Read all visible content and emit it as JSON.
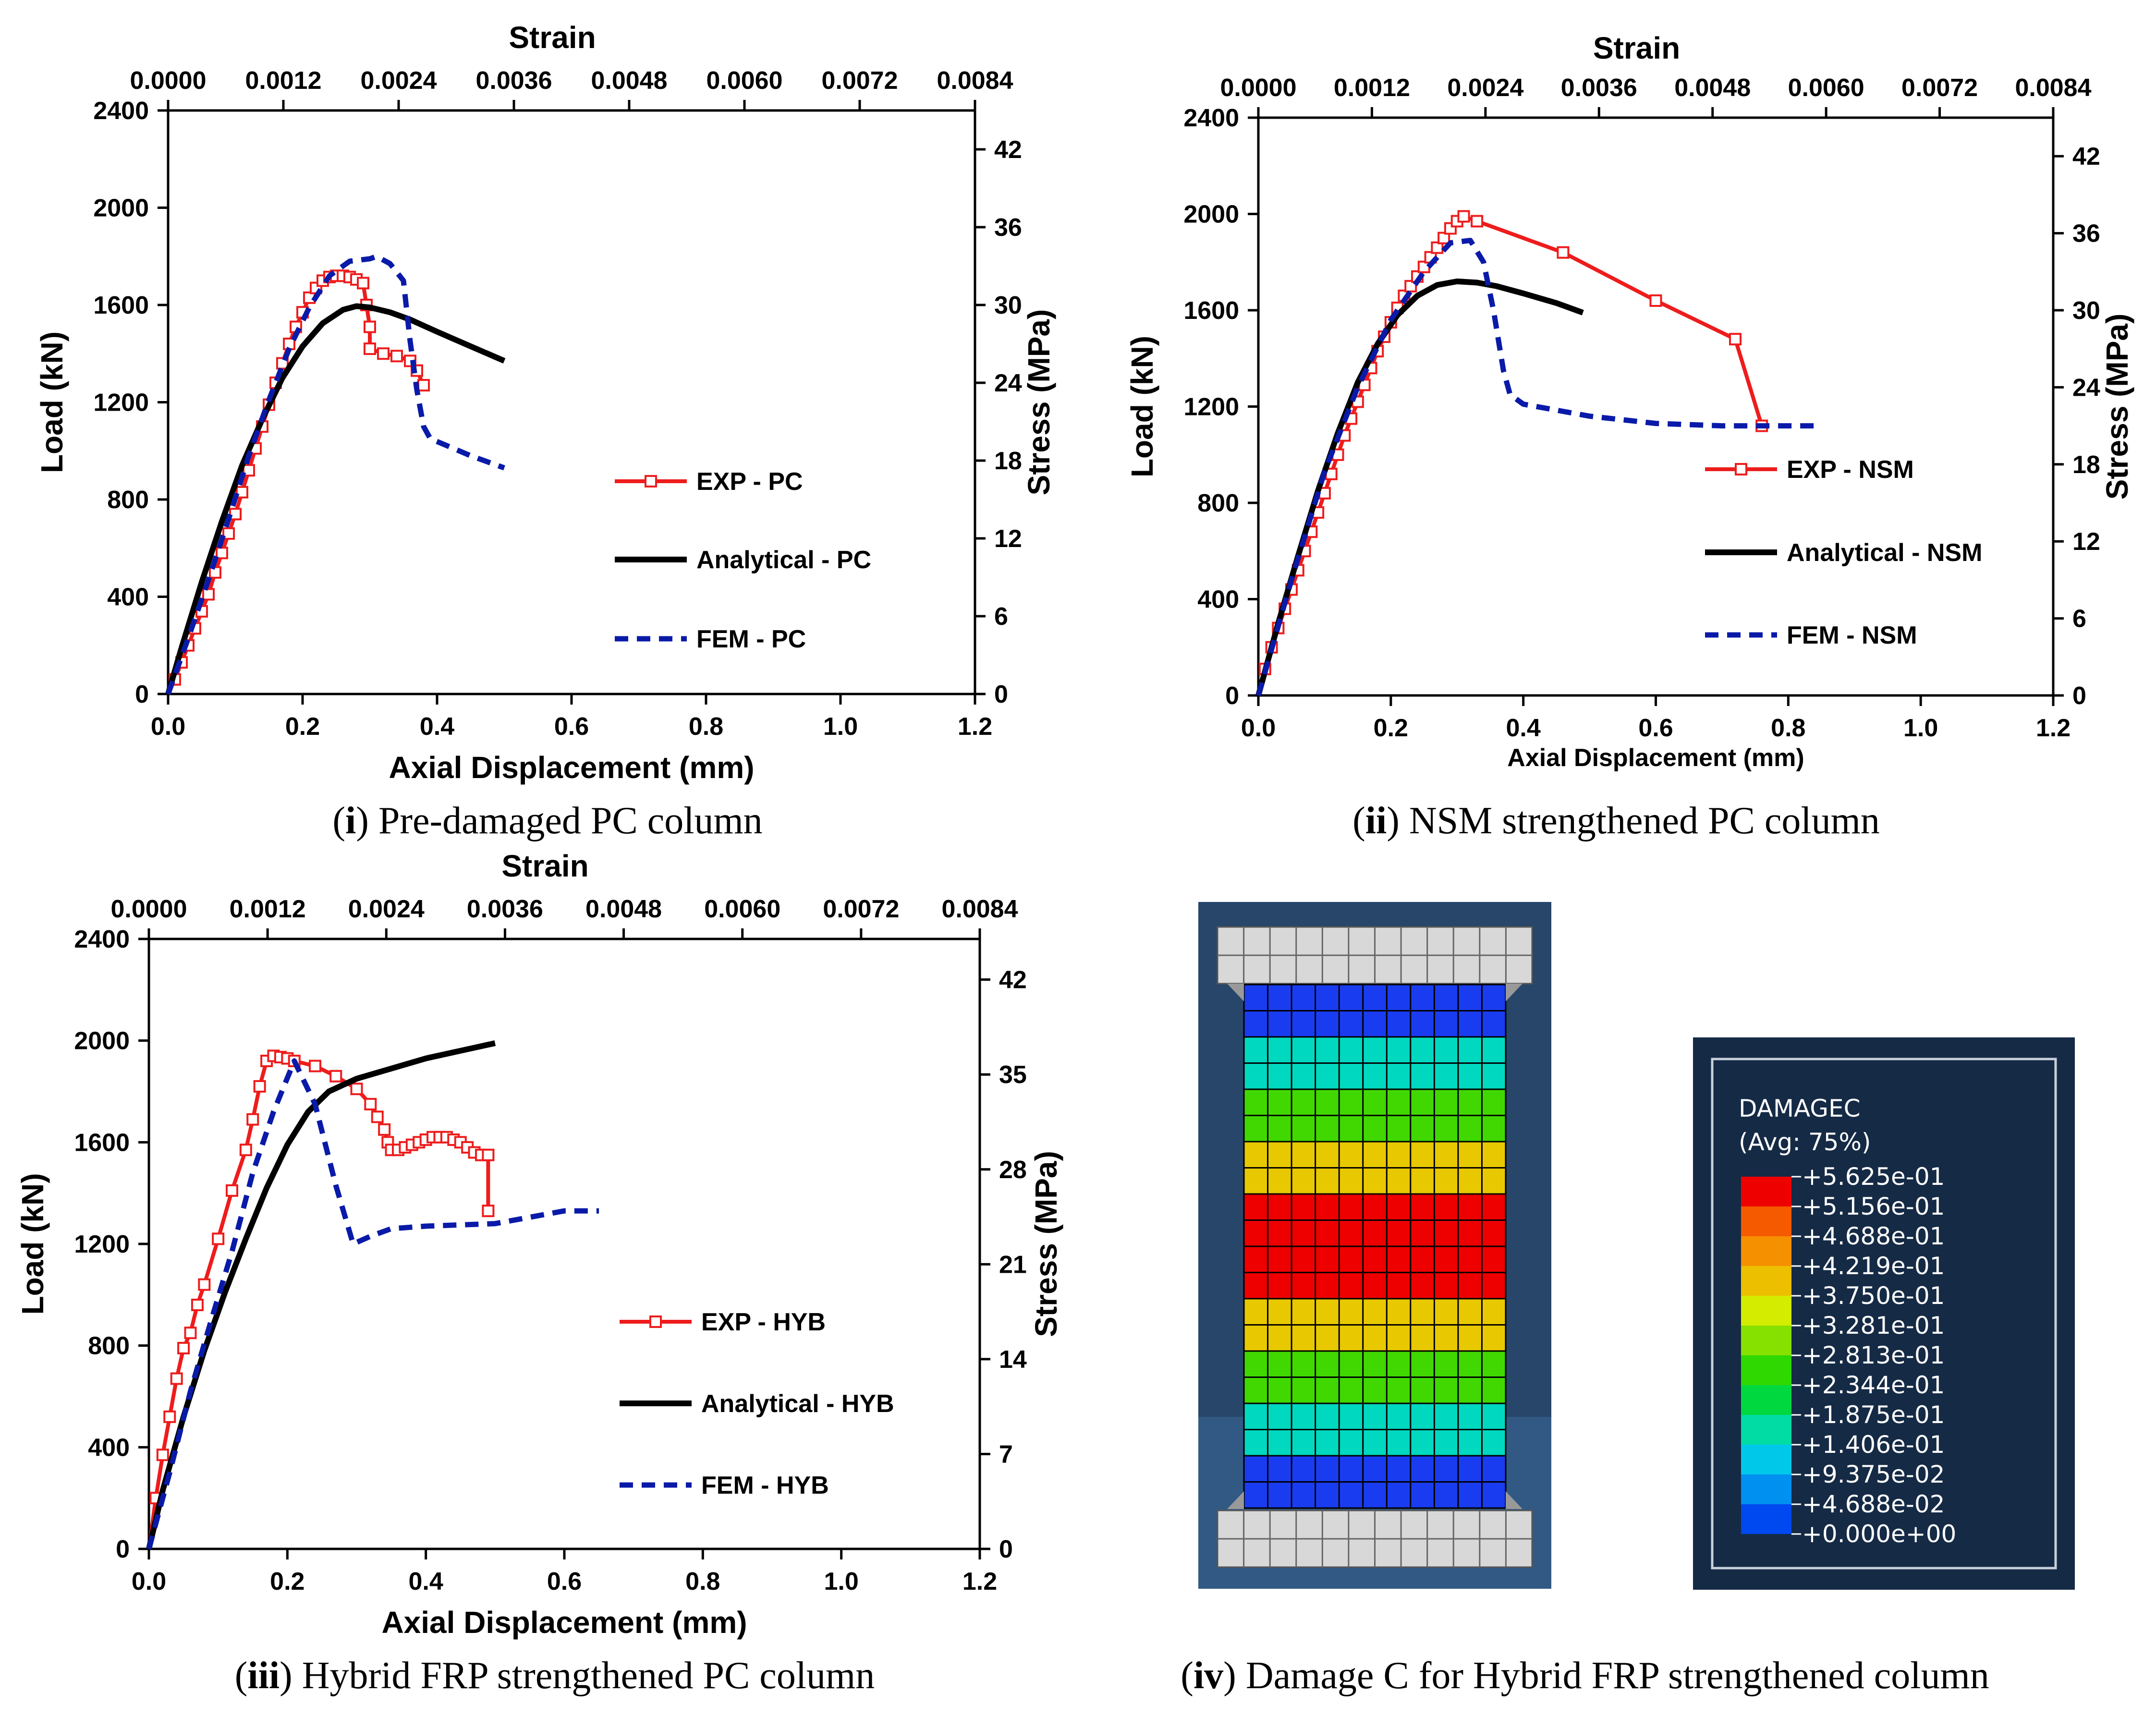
{
  "captions": [
    {
      "num": "i",
      "text": " Pre-damaged PC column"
    },
    {
      "num": "ii",
      "text": " NSM strengthened PC column"
    },
    {
      "num": "iii",
      "text": " Hybrid FRP strengthened PC column"
    },
    {
      "num": "iv",
      "text": " Damage C for Hybrid FRP strengthened column"
    }
  ],
  "chart_data": [
    {
      "type": "line",
      "title": "Pre-damaged PC column",
      "xlabel": "Axial Displacement (mm)",
      "ylabel": "Load (kN)",
      "x2label": "Strain",
      "y2label": "Stress (MPa)",
      "xlim": [
        0,
        1.2
      ],
      "ylim": [
        0,
        2400
      ],
      "x2lim": [
        0,
        0.0084
      ],
      "y2lim": [
        0,
        45
      ],
      "xticks": [
        "0.0",
        "0.2",
        "0.4",
        "0.6",
        "0.8",
        "1.0",
        "1.2"
      ],
      "yticks": [
        "0",
        "400",
        "800",
        "1200",
        "1600",
        "2000",
        "2400"
      ],
      "x2ticks": [
        "0.0000",
        "0.0012",
        "0.0024",
        "0.0036",
        "0.0048",
        "0.0060",
        "0.0072",
        "0.0084"
      ],
      "y2ticks": [
        "0",
        "6",
        "12",
        "18",
        "24",
        "30",
        "36",
        "42"
      ],
      "series": [
        {
          "name": "EXP - PC",
          "color": "#ee1c1c",
          "style": "marker",
          "x": [
            0,
            0.01,
            0.02,
            0.03,
            0.04,
            0.05,
            0.06,
            0.07,
            0.08,
            0.09,
            0.1,
            0.11,
            0.12,
            0.13,
            0.14,
            0.15,
            0.16,
            0.17,
            0.18,
            0.19,
            0.2,
            0.21,
            0.22,
            0.23,
            0.24,
            0.25,
            0.26,
            0.27,
            0.28,
            0.29,
            0.295,
            0.3,
            0.3,
            0.32,
            0.34,
            0.36,
            0.37,
            0.38
          ],
          "y": [
            0,
            60,
            130,
            200,
            270,
            340,
            410,
            500,
            580,
            660,
            740,
            830,
            920,
            1010,
            1100,
            1190,
            1280,
            1360,
            1440,
            1510,
            1570,
            1630,
            1670,
            1700,
            1715,
            1720,
            1720,
            1715,
            1705,
            1690,
            1600,
            1510,
            1420,
            1400,
            1390,
            1370,
            1330,
            1270
          ]
        },
        {
          "name": "Analytical - PC",
          "color": "#000000",
          "style": "solid",
          "x": [
            0,
            0.02,
            0.05,
            0.08,
            0.11,
            0.14,
            0.17,
            0.2,
            0.23,
            0.26,
            0.28,
            0.3,
            0.33,
            0.36,
            0.4,
            0.45,
            0.5
          ],
          "y": [
            0,
            190,
            460,
            710,
            940,
            1130,
            1300,
            1430,
            1525,
            1580,
            1595,
            1590,
            1570,
            1540,
            1490,
            1430,
            1370
          ]
        },
        {
          "name": "FEM - PC",
          "color": "#0a1aa8",
          "style": "dash",
          "x": [
            0,
            0.03,
            0.06,
            0.09,
            0.12,
            0.15,
            0.18,
            0.21,
            0.24,
            0.27,
            0.3,
            0.31,
            0.33,
            0.35,
            0.36,
            0.37,
            0.38,
            0.39,
            0.45,
            0.5
          ],
          "y": [
            0,
            230,
            470,
            720,
            980,
            1210,
            1420,
            1590,
            1720,
            1780,
            1790,
            1800,
            1770,
            1700,
            1450,
            1250,
            1100,
            1050,
            980,
            930
          ]
        }
      ],
      "legend": [
        {
          "label": "EXP - PC"
        },
        {
          "label": "Analytical - PC"
        },
        {
          "label": "FEM - PC"
        }
      ]
    },
    {
      "type": "line",
      "title": "NSM strengthened PC column",
      "xlabel": "Axial Displacement (mm)",
      "ylabel": "Load (kN)",
      "x2label": "Strain",
      "y2label": "Stress (MPa)",
      "xlim": [
        0,
        1.2
      ],
      "ylim": [
        0,
        2400
      ],
      "x2lim": [
        0,
        0.0084
      ],
      "y2lim": [
        0,
        45
      ],
      "xticks": [
        "0.0",
        "0.2",
        "0.4",
        "0.6",
        "0.8",
        "1.0",
        "1.2"
      ],
      "yticks": [
        "0",
        "400",
        "800",
        "1200",
        "1600",
        "2000",
        "2400"
      ],
      "x2ticks": [
        "0.0000",
        "0.0012",
        "0.0024",
        "0.0036",
        "0.0048",
        "0.0060",
        "0.0072",
        "0.0084"
      ],
      "y2ticks": [
        "0",
        "6",
        "12",
        "18",
        "24",
        "30",
        "36",
        "42"
      ],
      "series": [
        {
          "name": "EXP - NSM",
          "color": "#ee1c1c",
          "style": "marker",
          "x": [
            0,
            0.01,
            0.02,
            0.03,
            0.04,
            0.05,
            0.06,
            0.07,
            0.08,
            0.09,
            0.1,
            0.11,
            0.12,
            0.13,
            0.14,
            0.15,
            0.16,
            0.17,
            0.18,
            0.19,
            0.2,
            0.21,
            0.22,
            0.23,
            0.24,
            0.25,
            0.26,
            0.27,
            0.28,
            0.29,
            0.3,
            0.31,
            0.33,
            0.46,
            0.6,
            0.72,
            0.76
          ],
          "y": [
            0,
            110,
            200,
            280,
            360,
            440,
            520,
            600,
            680,
            760,
            840,
            920,
            1000,
            1080,
            1150,
            1220,
            1290,
            1360,
            1430,
            1490,
            1550,
            1610,
            1660,
            1700,
            1740,
            1780,
            1820,
            1860,
            1900,
            1940,
            1970,
            1990,
            1970,
            1840,
            1640,
            1480,
            1120
          ]
        },
        {
          "name": "Analytical - NSM",
          "color": "#000000",
          "style": "solid",
          "x": [
            0,
            0.03,
            0.06,
            0.09,
            0.12,
            0.15,
            0.18,
            0.21,
            0.24,
            0.27,
            0.3,
            0.33,
            0.36,
            0.4,
            0.45,
            0.49
          ],
          "y": [
            0,
            300,
            580,
            850,
            1090,
            1300,
            1460,
            1580,
            1660,
            1705,
            1720,
            1715,
            1700,
            1670,
            1630,
            1590
          ]
        },
        {
          "name": "FEM - NSM",
          "color": "#0a1aa8",
          "style": "dash",
          "x": [
            0,
            0.05,
            0.1,
            0.15,
            0.2,
            0.25,
            0.29,
            0.32,
            0.34,
            0.355,
            0.37,
            0.38,
            0.4,
            0.5,
            0.6,
            0.7,
            0.85
          ],
          "y": [
            0,
            480,
            930,
            1280,
            1560,
            1760,
            1880,
            1890,
            1800,
            1600,
            1350,
            1250,
            1210,
            1160,
            1130,
            1120,
            1120
          ]
        }
      ],
      "legend": [
        {
          "label": "EXP - NSM"
        },
        {
          "label": "Analytical - NSM"
        },
        {
          "label": "FEM - NSM"
        }
      ]
    },
    {
      "type": "line",
      "title": "Hybrid FRP strengthened PC column",
      "xlabel": "Axial Displacement (mm)",
      "ylabel": "Load (kN)",
      "x2label": "Strain",
      "y2label": "Stress (MPa)",
      "xlim": [
        0,
        1.2
      ],
      "ylim": [
        0,
        2400
      ],
      "x2lim": [
        0,
        0.0084
      ],
      "y2lim": [
        0,
        45
      ],
      "xticks": [
        "0.0",
        "0.2",
        "0.4",
        "0.6",
        "0.8",
        "1.0",
        "1.2"
      ],
      "yticks": [
        "0",
        "400",
        "800",
        "1200",
        "1600",
        "2000",
        "2400"
      ],
      "x2ticks": [
        "0.0000",
        "0.0012",
        "0.0024",
        "0.0036",
        "0.0048",
        "0.0060",
        "0.0072",
        "0.0084"
      ],
      "y2ticks": [
        "0",
        "7",
        "14",
        "21",
        "28",
        "35",
        "42"
      ],
      "series": [
        {
          "name": "EXP - HYB",
          "color": "#ee1c1c",
          "style": "marker",
          "x": [
            0,
            0.01,
            0.02,
            0.03,
            0.04,
            0.05,
            0.06,
            0.07,
            0.08,
            0.1,
            0.12,
            0.14,
            0.15,
            0.16,
            0.17,
            0.18,
            0.19,
            0.2,
            0.21,
            0.24,
            0.27,
            0.3,
            0.32,
            0.33,
            0.34,
            0.345,
            0.35,
            0.36,
            0.37,
            0.38,
            0.39,
            0.4,
            0.41,
            0.42,
            0.43,
            0.44,
            0.45,
            0.46,
            0.47,
            0.48,
            0.49,
            0.49
          ],
          "y": [
            0,
            200,
            370,
            520,
            670,
            790,
            850,
            960,
            1040,
            1220,
            1410,
            1570,
            1690,
            1820,
            1920,
            1940,
            1935,
            1930,
            1920,
            1900,
            1860,
            1810,
            1750,
            1700,
            1650,
            1600,
            1570,
            1570,
            1580,
            1590,
            1600,
            1610,
            1620,
            1620,
            1620,
            1610,
            1600,
            1580,
            1560,
            1550,
            1550,
            1330
          ]
        },
        {
          "name": "Analytical - HYB",
          "color": "#000000",
          "style": "solid",
          "x": [
            0,
            0.02,
            0.05,
            0.08,
            0.11,
            0.14,
            0.17,
            0.2,
            0.23,
            0.26,
            0.3,
            0.35,
            0.4,
            0.45,
            0.5
          ],
          "y": [
            0,
            230,
            520,
            780,
            1010,
            1220,
            1420,
            1590,
            1720,
            1800,
            1850,
            1890,
            1930,
            1960,
            1990
          ]
        },
        {
          "name": "FEM - HYB",
          "color": "#0a1aa8",
          "style": "dash",
          "x": [
            0,
            0.03,
            0.06,
            0.09,
            0.12,
            0.15,
            0.18,
            0.21,
            0.24,
            0.27,
            0.295,
            0.32,
            0.35,
            0.4,
            0.5,
            0.6,
            0.65
          ],
          "y": [
            0,
            300,
            620,
            900,
            1170,
            1480,
            1720,
            1920,
            1750,
            1430,
            1200,
            1230,
            1260,
            1270,
            1280,
            1330,
            1330
          ]
        }
      ],
      "legend": [
        {
          "label": "EXP - HYB"
        },
        {
          "label": "Analytical - HYB"
        },
        {
          "label": "FEM - HYB"
        }
      ]
    }
  ],
  "contour_legend": {
    "title_line1": "DAMAGEC",
    "title_line2": "(Avg: 75%)",
    "entries": [
      {
        "label": "+5.625e-01",
        "color": "#ee0000"
      },
      {
        "label": "+5.156e-01",
        "color": "#f55a00"
      },
      {
        "label": "+4.688e-01",
        "color": "#f59000"
      },
      {
        "label": "+4.219e-01",
        "color": "#ecc000"
      },
      {
        "label": "+3.750e-01",
        "color": "#d4ec00"
      },
      {
        "label": "+3.281e-01",
        "color": "#86e000"
      },
      {
        "label": "+2.813e-01",
        "color": "#2ed800"
      },
      {
        "label": "+2.344e-01",
        "color": "#00d840"
      },
      {
        "label": "+1.875e-01",
        "color": "#00dca4"
      },
      {
        "label": "+1.406e-01",
        "color": "#00c8e8"
      },
      {
        "label": "+9.375e-02",
        "color": "#0090f0"
      },
      {
        "label": "+4.688e-02",
        "color": "#0048f0"
      },
      {
        "label": "+0.000e+00",
        "color": "#0000ee"
      }
    ],
    "background": "#152a45",
    "column_bands": [
      "#1a3cf0",
      "#00d8c0",
      "#40d800",
      "#e8c800",
      "#ee0000",
      "#ee0000",
      "#e8c800",
      "#40d800",
      "#00d8c0",
      "#1a3cf0"
    ]
  }
}
